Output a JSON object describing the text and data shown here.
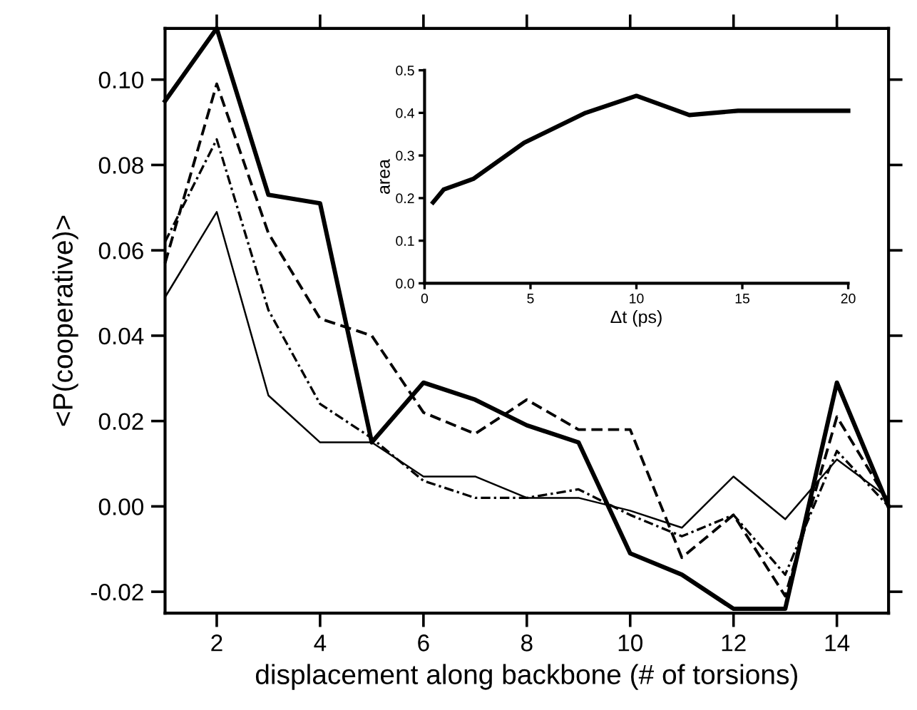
{
  "chart_data": [
    {
      "type": "line",
      "xlabel": "displacement along backbone (# of torsions)",
      "ylabel": "<P(cooperative)>",
      "x": [
        1,
        2,
        3,
        4,
        5,
        6,
        7,
        8,
        9,
        10,
        11,
        12,
        13,
        14,
        15
      ],
      "series": [
        {
          "color": "#000000",
          "line_style": "solid",
          "values": [
            0.095,
            0.112,
            0.073,
            0.071,
            0.015,
            0.029,
            0.025,
            0.019,
            0.015,
            -0.011,
            -0.016,
            -0.024,
            -0.024,
            0.029,
            0.0
          ]
        },
        {
          "color": "#000000",
          "line_style": "dashed",
          "values": [
            0.057,
            0.099,
            0.064,
            0.044,
            0.04,
            0.022,
            0.017,
            0.025,
            0.018,
            0.018,
            -0.012,
            -0.002,
            -0.021,
            0.021,
            0.001
          ]
        },
        {
          "color": "#000000",
          "line_style": "dotted",
          "values": [
            0.062,
            0.086,
            0.046,
            0.024,
            0.016,
            0.006,
            0.002,
            0.002,
            0.004,
            -0.002,
            -0.007,
            -0.002,
            -0.016,
            0.013,
            0.0
          ]
        },
        {
          "color": "#000000",
          "line_style": "solid",
          "values": [
            0.049,
            0.069,
            0.026,
            0.015,
            0.015,
            0.007,
            0.007,
            0.002,
            0.002,
            -0.001,
            -0.005,
            0.007,
            -0.003,
            0.011,
            0.002
          ]
        }
      ],
      "xlim": [
        1,
        15
      ],
      "ylim": [
        -0.025,
        0.112
      ],
      "xticks": [
        2,
        4,
        6,
        8,
        10,
        12,
        14
      ],
      "yticks": [
        {
          "value": -0.02,
          "label": "-0.02"
        },
        {
          "value": 0,
          "label": "0.00"
        },
        {
          "value": 0.02,
          "label": "0.02"
        },
        {
          "value": 0.04,
          "label": "0.04"
        },
        {
          "value": 0.06,
          "label": "0.06"
        },
        {
          "value": 0.08,
          "label": "0.08"
        },
        {
          "value": 0.1,
          "label": "0.10"
        }
      ],
      "grid": false,
      "legend": false,
      "marker": "none"
    },
    {
      "type": "line",
      "xlabel": "Δt (ps)",
      "ylabel": "area",
      "x": [
        0.4,
        0.9,
        2.3,
        4.7,
        7.6,
        10,
        12.5,
        14.8,
        20
      ],
      "series": [
        {
          "color": "#000000",
          "line_style": "solid",
          "values": [
            0.19,
            0.22,
            0.245,
            0.33,
            0.4,
            0.44,
            0.395,
            0.405,
            0.405
          ]
        }
      ],
      "xlim": [
        0,
        20
      ],
      "ylim": [
        0,
        0.5
      ],
      "xticks": [
        0,
        5,
        10,
        15,
        20
      ],
      "yticks": [
        {
          "value": 0,
          "label": "0.0"
        },
        {
          "value": 0.1,
          "label": "0.1"
        },
        {
          "value": 0.2,
          "label": "0.2"
        },
        {
          "value": 0.3,
          "label": "0.3"
        },
        {
          "value": 0.4,
          "label": "0.4"
        },
        {
          "value": 0.5,
          "label": "0.5"
        }
      ],
      "grid": false,
      "legend": false,
      "marker": "none"
    }
  ]
}
